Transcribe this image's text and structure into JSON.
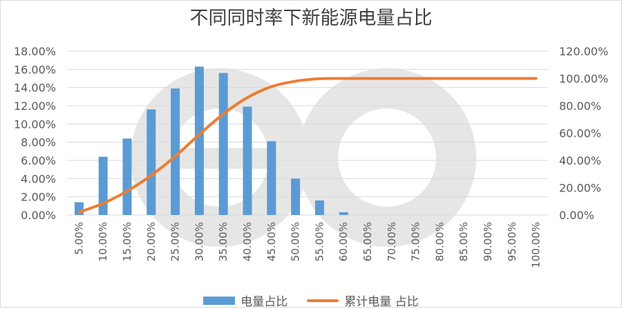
{
  "chart_data": {
    "type": "bar",
    "title": "不同同时率下新能源电量占比",
    "categories": [
      "5.00%",
      "10.00%",
      "15.00%",
      "20.00%",
      "25.00%",
      "30.00%",
      "35.00%",
      "40.00%",
      "45.00%",
      "50.00%",
      "55.00%",
      "60.00%",
      "65.00%",
      "70.00%",
      "75.00%",
      "80.00%",
      "85.00%",
      "90.00%",
      "95.00%",
      "100.00%"
    ],
    "series": [
      {
        "name": "电量占比",
        "type": "bar",
        "axis": "left",
        "color": "#5b9bd5",
        "values": [
          1.4,
          6.4,
          8.4,
          11.6,
          13.9,
          16.3,
          15.6,
          11.9,
          8.1,
          4.0,
          1.6,
          0.3,
          0,
          0,
          0,
          0,
          0,
          0,
          0,
          0
        ]
      },
      {
        "name": "累计电量 占比",
        "type": "line",
        "axis": "right",
        "color": "#ed7d31",
        "values": [
          2.0,
          8.5,
          17.5,
          29.0,
          43.0,
          59.0,
          74.0,
          86.0,
          94.0,
          98.0,
          99.8,
          100,
          100,
          100,
          100,
          100,
          100,
          100,
          100,
          100
        ]
      }
    ],
    "y_left": {
      "ylim": [
        0,
        18
      ],
      "ticks": [
        0,
        2,
        4,
        6,
        8,
        10,
        12,
        14,
        16,
        18
      ],
      "tick_labels": [
        "0.00%",
        "2.00%",
        "4.00%",
        "6.00%",
        "8.00%",
        "10.00%",
        "12.00%",
        "14.00%",
        "16.00%",
        "18.00%"
      ]
    },
    "y_right": {
      "ylim": [
        0,
        120
      ],
      "ticks": [
        0,
        20,
        40,
        60,
        80,
        100,
        120
      ],
      "tick_labels": [
        "0.00%",
        "20.00%",
        "40.00%",
        "60.00%",
        "80.00%",
        "100.00%",
        "120.00%"
      ]
    },
    "grid": true,
    "legend_position": "bottom"
  }
}
